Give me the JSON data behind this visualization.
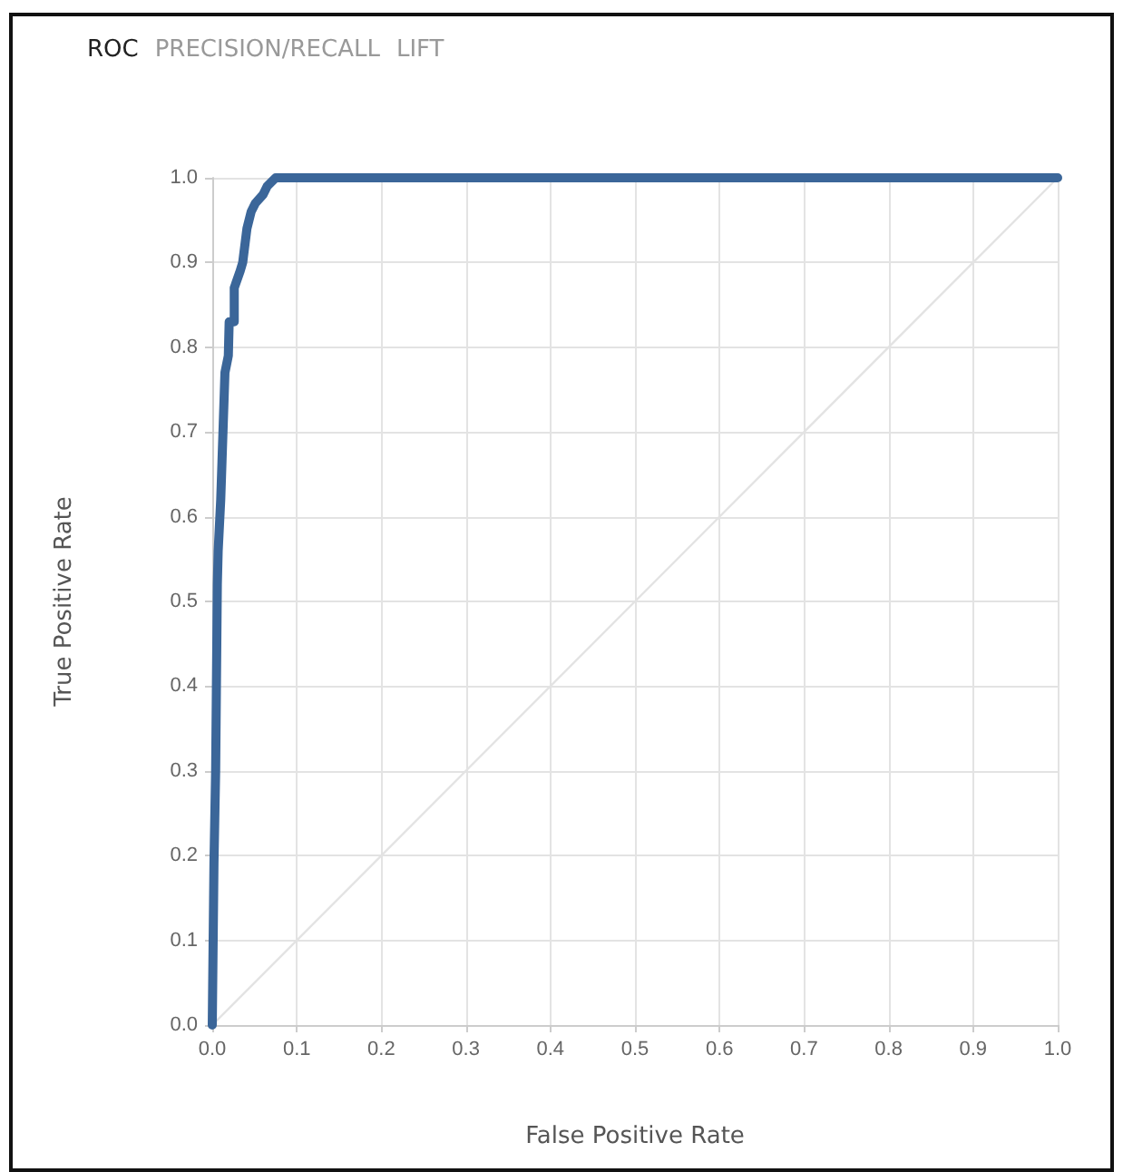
{
  "chart_data": {
    "type": "line",
    "xlabel": "False Positive Rate",
    "ylabel": "True Positive Rate",
    "annotations": [
      "ROC",
      "PRECISION/RECALL",
      "LIFT"
    ],
    "series": [
      {
        "color": "#3b6699",
        "x": [
          0,
          0.002,
          0.004,
          0.006,
          0.007,
          0.01,
          0.013,
          0.015,
          0.019,
          0.02,
          0.026,
          0.026,
          0.033,
          0.036,
          0.041,
          0.046,
          0.051,
          0.06,
          0.065,
          0.075,
          1
        ],
        "values": [
          0,
          0.19,
          0.3,
          0.52,
          0.56,
          0.62,
          0.71,
          0.77,
          0.79,
          0.83,
          0.83,
          0.87,
          0.89,
          0.9,
          0.94,
          0.96,
          0.97,
          0.98,
          0.99,
          1.0,
          1.0
        ]
      },
      {
        "color": "#e3e3e3",
        "x": [
          0,
          1
        ],
        "values": [
          0,
          1
        ]
      }
    ],
    "xlim": [
      0,
      1
    ],
    "xticks": [
      {
        "value": 0,
        "label": "0.0"
      },
      0.1,
      0.2,
      0.3,
      0.4,
      0.5,
      0.6,
      0.7,
      0.8,
      0.9,
      {
        "value": 1,
        "label": "1.0"
      }
    ],
    "ylim": [
      0,
      1
    ],
    "yticks": [
      {
        "value": 0,
        "label": "0.0"
      },
      0.1,
      0.2,
      0.3,
      0.4,
      0.5,
      0.6,
      0.7,
      0.8,
      0.9,
      {
        "value": 1,
        "label": "1.0"
      }
    ],
    "grid": true,
    "marker": "none",
    "line_style": "solid"
  }
}
